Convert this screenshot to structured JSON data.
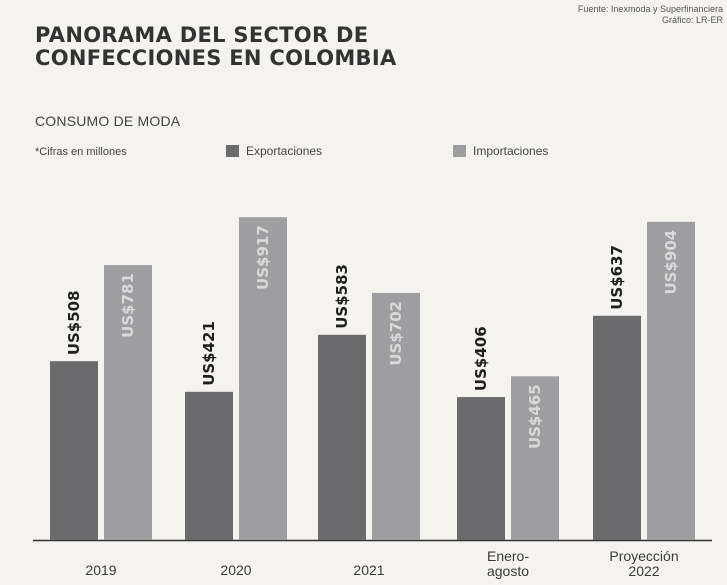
{
  "header": {
    "source_line1": "Fuente: Inexmoda y Superfinanciera",
    "source_line2": "Gráfico: LR-ER",
    "title_line1": "PANORAMA DEL SECTOR DE",
    "title_line2": "CONFECCIONES EN COLOMBIA",
    "subtitle": "CONSUMO DE MODA",
    "note": "*Cifras en millones"
  },
  "colors": {
    "exportaciones": "#6b6b6d",
    "importaciones": "#9e9ea0",
    "background": "#f4f3f0"
  },
  "chart_data": {
    "type": "bar",
    "categories": [
      "2019",
      "2020",
      "2021",
      "Enero-\nagosto",
      "Proyección\n2022"
    ],
    "series": [
      {
        "name": "Exportaciones",
        "values": [
          508,
          421,
          583,
          406,
          637
        ],
        "labels": [
          "US$508",
          "US$421",
          "US$583",
          "US$406",
          "US$637"
        ]
      },
      {
        "name": "Importaciones",
        "values": [
          781,
          917,
          702,
          465,
          904
        ],
        "labels": [
          "US$781",
          "US$917",
          "US$702",
          "US$465",
          "US$904"
        ]
      }
    ],
    "ylim": [
      0,
      1000
    ],
    "grid": false,
    "legend": "top"
  }
}
